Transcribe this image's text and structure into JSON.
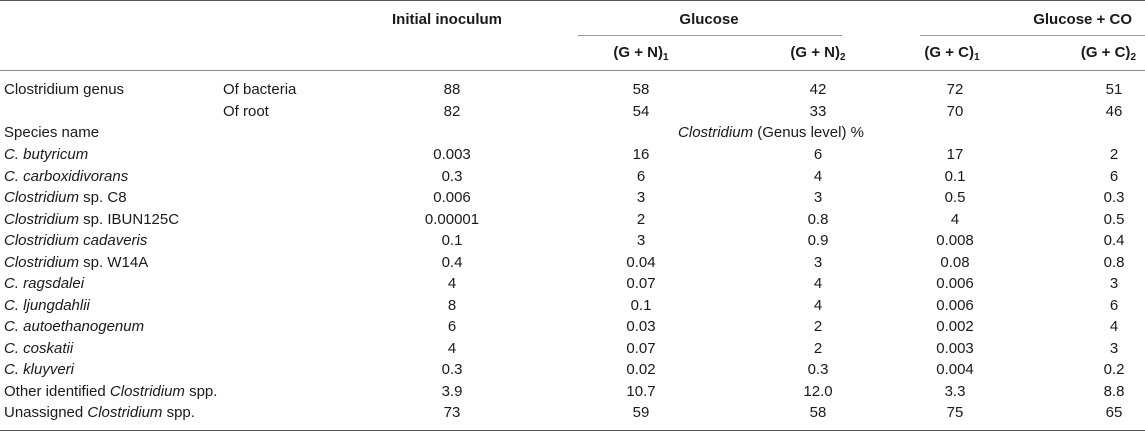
{
  "headers": {
    "initial_inoculum": "Initial inoculum",
    "glucose": "Glucose",
    "glucose_co": "Glucose + CO",
    "gn1": {
      "text": "(G + N)",
      "sub": "1"
    },
    "gn2": {
      "text": "(G + N)",
      "sub": "2"
    },
    "gc1": {
      "text": "(G + C)",
      "sub": "1"
    },
    "gc2": {
      "text": "(G + C)",
      "sub": "2"
    }
  },
  "genus_rows": [
    {
      "label": "Clostridium genus",
      "sublabel": "Of bacteria",
      "values": [
        "88",
        "58",
        "42",
        "72",
        "51"
      ]
    },
    {
      "label": "",
      "sublabel": "Of root",
      "values": [
        "82",
        "54",
        "33",
        "70",
        "46"
      ]
    }
  ],
  "species_header": {
    "label": "Species name",
    "caption_italic": "Clostridium",
    "caption_rest": " (Genus level) %"
  },
  "species_rows": [
    {
      "name_italic": "C. butyricum",
      "name_rest": "",
      "values": [
        "0.003",
        "16",
        "6",
        "17",
        "2"
      ]
    },
    {
      "name_italic": "C. carboxidivorans",
      "name_rest": "",
      "values": [
        "0.3",
        "6",
        "4",
        "0.1",
        "6"
      ]
    },
    {
      "name_italic": "Clostridium",
      "name_rest": " sp. C8",
      "values": [
        "0.006",
        "3",
        "3",
        "0.5",
        "0.3"
      ]
    },
    {
      "name_italic": "Clostridium",
      "name_rest": " sp. IBUN125C",
      "values": [
        "0.00001",
        "2",
        "0.8",
        "4",
        "0.5"
      ]
    },
    {
      "name_italic": "Clostridium cadaveris",
      "name_rest": "",
      "values": [
        "0.1",
        "3",
        "0.9",
        "0.008",
        "0.4"
      ]
    },
    {
      "name_italic": "Clostridium",
      "name_rest": " sp. W14A",
      "values": [
        "0.4",
        "0.04",
        "3",
        "0.08",
        "0.8"
      ]
    },
    {
      "name_italic": "C. ragsdalei",
      "name_rest": "",
      "values": [
        "4",
        "0.07",
        "4",
        "0.006",
        "3"
      ]
    },
    {
      "name_italic": "C. ljungdahlii",
      "name_rest": "",
      "values": [
        "8",
        "0.1",
        "4",
        "0.006",
        "6"
      ]
    },
    {
      "name_italic": "C. autoethanogenum",
      "name_rest": "",
      "values": [
        "6",
        "0.03",
        "2",
        "0.002",
        "4"
      ]
    },
    {
      "name_italic": "C. coskatii",
      "name_rest": "",
      "values": [
        "4",
        "0.07",
        "2",
        "0.003",
        "3"
      ]
    },
    {
      "name_italic": "C. kluyveri",
      "name_rest": "",
      "values": [
        "0.3",
        "0.02",
        "0.3",
        "0.004",
        "0.2"
      ]
    }
  ],
  "summary_rows": [
    {
      "name_pre": "Other identified ",
      "name_italic": "Clostridium",
      "name_rest": " spp.",
      "values": [
        "3.9",
        "10.7",
        "12.0",
        "3.3",
        "8.8"
      ]
    },
    {
      "name_pre": "Unassigned ",
      "name_italic": "Clostridium",
      "name_rest": " spp.",
      "values": [
        "73",
        "59",
        "58",
        "75",
        "65"
      ]
    }
  ]
}
